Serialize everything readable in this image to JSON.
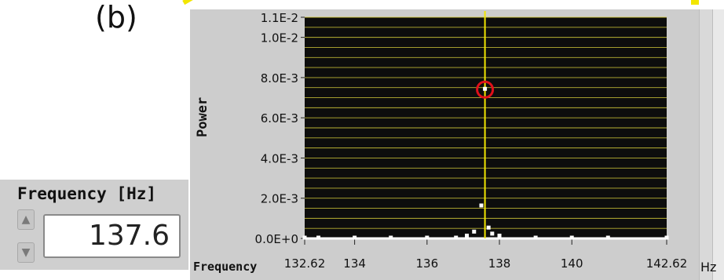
{
  "panel_label": "(b)",
  "frequency_control": {
    "title": "Frequency [Hz]",
    "value": "137.6"
  },
  "colors": {
    "plot_background": "#0d0d0d",
    "gridline": "#d8cf3a",
    "cursor": "#f2e600",
    "marker_ring": "#e0101a",
    "frame": "#cdcdcd",
    "data": "#ffffff"
  },
  "chart_data": {
    "type": "scatter",
    "title": "",
    "xlabel": "Frequency",
    "ylabel": "Power",
    "x_unit": "Hz",
    "xlim": [
      132.62,
      142.62
    ],
    "ylim": [
      0,
      0.011
    ],
    "x_ticks": [
      "132.62",
      "134",
      "136",
      "138",
      "140",
      "142.62"
    ],
    "y_ticks": [
      "0.0E+0",
      "2.0E-3",
      "4.0E-3",
      "6.0E-3",
      "8.0E-3",
      "1.0E-2",
      "1.1E-2"
    ],
    "grid": true,
    "cursor_x": 137.6,
    "highlighted_point": {
      "x": 137.6,
      "y": 0.0074
    },
    "series": [
      {
        "points": [
          {
            "x": 132.62,
            "y": 0.0
          },
          {
            "x": 133.0,
            "y": 0.0
          },
          {
            "x": 134.0,
            "y": 0.0
          },
          {
            "x": 135.0,
            "y": 0.0
          },
          {
            "x": 136.0,
            "y": 0.0
          },
          {
            "x": 136.8,
            "y": 0.0
          },
          {
            "x": 137.1,
            "y": 0.0001
          },
          {
            "x": 137.3,
            "y": 0.0003
          },
          {
            "x": 137.5,
            "y": 0.0016
          },
          {
            "x": 137.6,
            "y": 0.0074
          },
          {
            "x": 137.7,
            "y": 0.0005
          },
          {
            "x": 137.8,
            "y": 0.0002
          },
          {
            "x": 138.0,
            "y": 0.0001
          },
          {
            "x": 139.0,
            "y": 0.0
          },
          {
            "x": 140.0,
            "y": 0.0
          },
          {
            "x": 141.0,
            "y": 0.0
          },
          {
            "x": 142.62,
            "y": 0.0
          }
        ]
      }
    ]
  }
}
